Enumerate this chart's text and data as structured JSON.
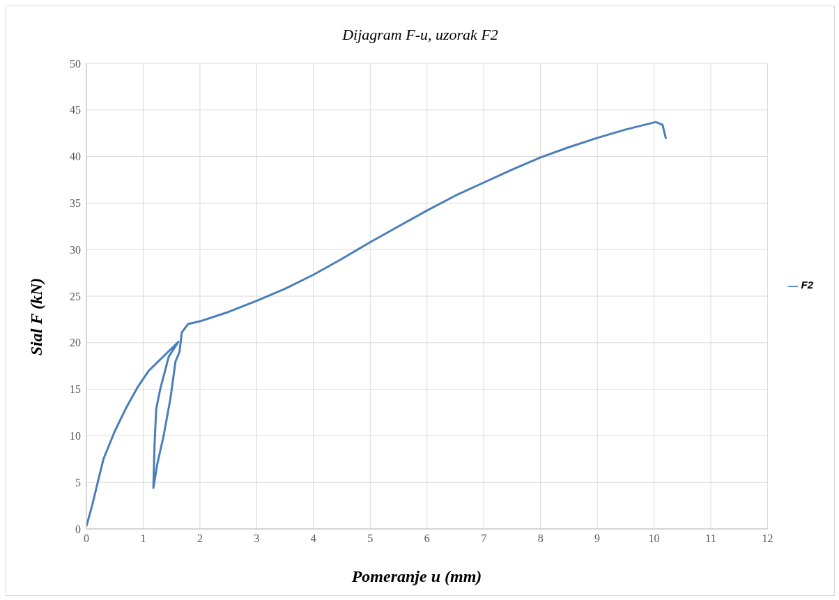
{
  "chart_data": {
    "type": "line",
    "title": "Dijagram F-u,  uzorak F2",
    "xlabel": "Pomeranje u  (mm)",
    "ylabel": "Sial  F  (kN)",
    "xlim": [
      0,
      12
    ],
    "xticks": [
      0,
      1,
      2,
      3,
      4,
      5,
      6,
      7,
      8,
      9,
      10,
      11,
      12
    ],
    "ylim": [
      0,
      50
    ],
    "yticks": [
      0,
      5,
      10,
      15,
      20,
      25,
      30,
      35,
      40,
      45,
      50
    ],
    "grid": true,
    "legend": "right",
    "marker": "none",
    "line_style": "solid",
    "series": [
      {
        "name": "F2",
        "color": "#4a7ebb",
        "x": [
          0,
          0.1,
          0.2,
          0.3,
          0.5,
          0.7,
          0.9,
          1.1,
          1.62,
          1.45,
          1.3,
          1.23,
          1.2,
          1.18,
          1.25,
          1.36,
          1.48,
          1.57,
          1.64,
          1.68,
          1.79,
          2,
          2.5,
          3,
          3.5,
          4,
          4.5,
          5,
          5.5,
          6,
          6.5,
          7,
          7.5,
          8,
          8.5,
          9,
          9.5,
          10.03,
          10.15,
          10.21
        ],
        "values": [
          0.3,
          2.5,
          5,
          7.5,
          10.5,
          13,
          15.2,
          17,
          20.1,
          18.5,
          15,
          12.9,
          9,
          4.4,
          7,
          10,
          14,
          18,
          19,
          21.1,
          22,
          22.3,
          23.3,
          24.5,
          25.8,
          27.3,
          29,
          30.8,
          32.5,
          34.2,
          35.8,
          37.2,
          38.6,
          39.9,
          41,
          42,
          42.9,
          43.7,
          43.4,
          41.9
        ]
      }
    ]
  }
}
